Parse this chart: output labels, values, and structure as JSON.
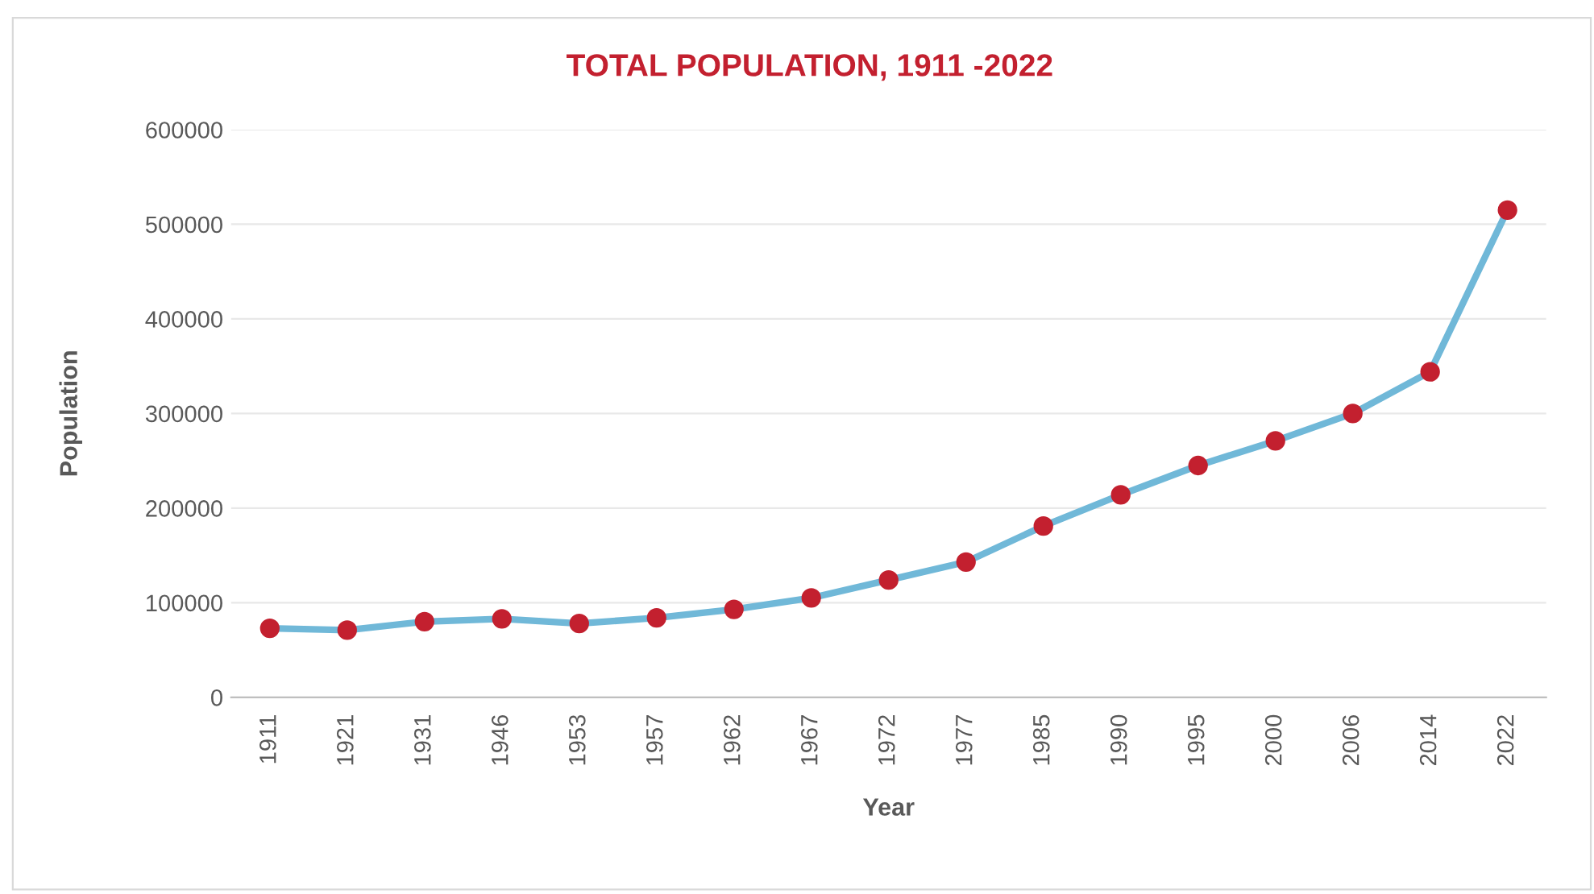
{
  "chart_data": {
    "type": "line",
    "title": "TOTAL POPULATION, 1911 -2022",
    "xlabel": "Year",
    "ylabel": "Population",
    "categories": [
      "1911",
      "1921",
      "1931",
      "1946",
      "1953",
      "1957",
      "1962",
      "1967",
      "1972",
      "1977",
      "1985",
      "1990",
      "1995",
      "2000",
      "2006",
      "2014",
      "2022"
    ],
    "series": [
      {
        "color": "#70b8d8",
        "colors": [
          "#c3202f",
          "#c3202f",
          "#c3202f",
          "#c3202f",
          "#c3202f",
          "#c3202f",
          "#c3202f",
          "#c3202f",
          "#c3202f",
          "#c3202f",
          "#c3202f",
          "#c3202f",
          "#c3202f",
          "#c3202f",
          "#c3202f",
          "#c3202f",
          "#c3202f"
        ],
        "values": [
          73000,
          71000,
          80000,
          83000,
          78000,
          84000,
          93000,
          105000,
          124000,
          143000,
          181000,
          214000,
          245000,
          271000,
          300000,
          344000,
          515000
        ]
      }
    ],
    "ylim": [
      0,
      600000
    ],
    "yticks": [
      0,
      100000,
      200000,
      300000,
      400000,
      500000,
      600000
    ],
    "grid": "y",
    "marker": "circle",
    "line_style": "solid"
  }
}
